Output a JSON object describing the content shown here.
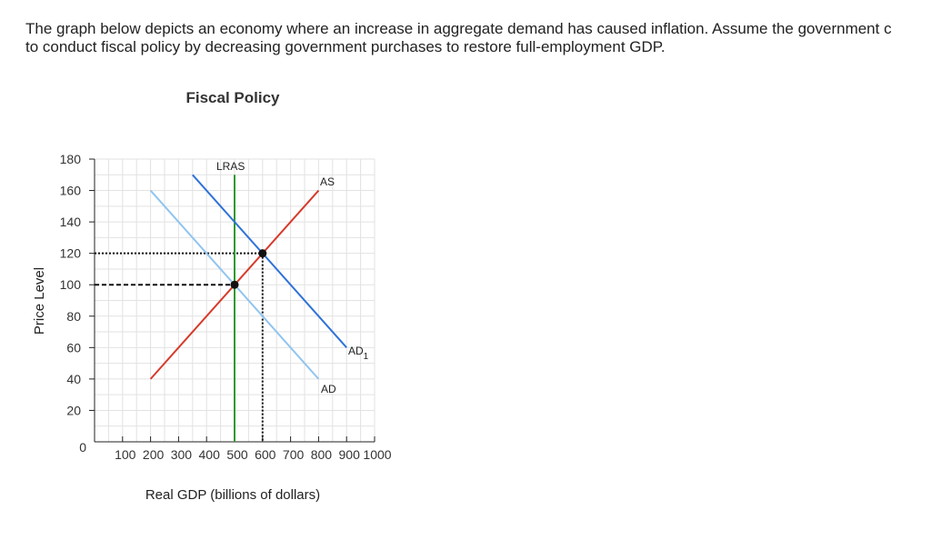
{
  "question": {
    "line1": "The graph below depicts an economy where an increase in aggregate demand has caused inflation. Assume the government c",
    "line2": "to conduct fiscal policy by decreasing government purchases to restore full-employment GDP."
  },
  "colors": {
    "grid": "#e2e2e2",
    "axis": "#222222",
    "lras": "#2e9a2e",
    "as": "#d63a2a",
    "ad": "#90c4f0",
    "ad1": "#2f72d8",
    "points": "#111111"
  },
  "chart_data": {
    "type": "line",
    "title": "Fiscal Policy",
    "xlabel": "Real GDP (billions of dollars)",
    "ylabel": "Price Level",
    "xlim": [
      0,
      1000
    ],
    "ylim": [
      0,
      180
    ],
    "x_ticks": [
      100,
      200,
      300,
      400,
      500,
      600,
      700,
      800,
      900,
      1000
    ],
    "y_ticks": [
      0,
      20,
      40,
      60,
      80,
      100,
      120,
      140,
      160,
      180
    ],
    "grid": true,
    "series": [
      {
        "name": "LRAS",
        "points": [
          [
            500,
            0
          ],
          [
            500,
            170
          ]
        ]
      },
      {
        "name": "AS",
        "points": [
          [
            200,
            40
          ],
          [
            800,
            160
          ]
        ]
      },
      {
        "name": "AD",
        "points": [
          [
            200,
            160
          ],
          [
            800,
            40
          ]
        ]
      },
      {
        "name": "AD",
        "sub": "1",
        "points": [
          [
            350,
            170
          ],
          [
            900,
            60
          ]
        ]
      }
    ],
    "equilibria": [
      {
        "x": 500,
        "y": 100
      },
      {
        "x": 600,
        "y": 120
      }
    ]
  }
}
